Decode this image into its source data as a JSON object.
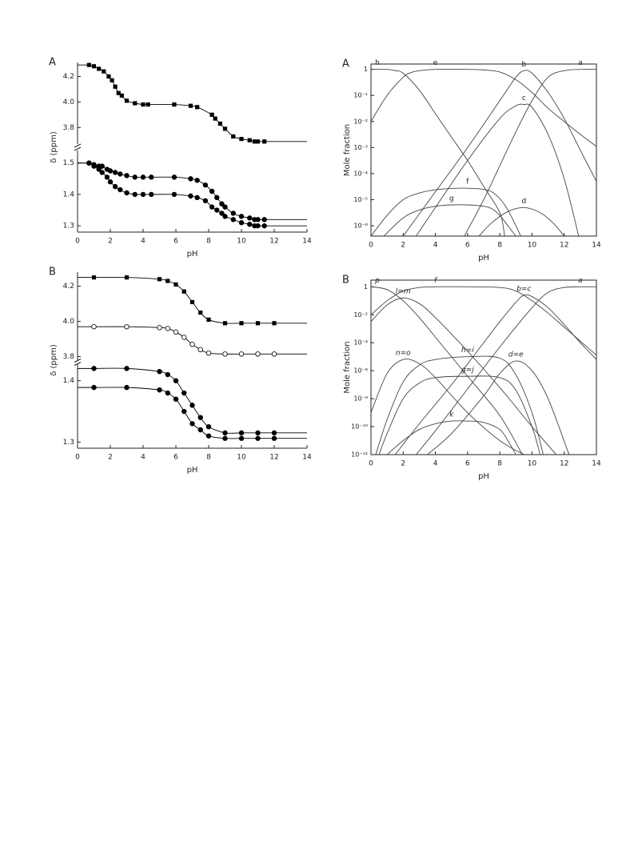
{
  "chart_data": [
    {
      "type": "scatter",
      "panel_label": "A",
      "xlabel": "pH",
      "ylabel": "δ (ppm)",
      "xlim": [
        0,
        14
      ],
      "xticks": [
        0,
        2,
        4,
        6,
        8,
        10,
        12,
        14
      ],
      "y_segments": [
        {
          "ylim": [
            3.67,
            4.31
          ],
          "yticks": [
            3.8,
            {
              "value": 4,
              "label": "4.0"
            },
            4.2
          ]
        },
        {
          "ylim": [
            1.28,
            1.54
          ],
          "yticks": [
            1.3,
            1.4,
            1.5
          ]
        }
      ],
      "series": [
        {
          "marker": "square",
          "color": "#000",
          "x": [
            0.7,
            1.0,
            1.3,
            1.6,
            1.9,
            2.1,
            2.3,
            2.5,
            2.7,
            3.0,
            3.5,
            4.0,
            4.3,
            5.9,
            6.9,
            7.3,
            8.2,
            8.4,
            8.7,
            9.0,
            9.5,
            10.0,
            10.5,
            10.8,
            11.0,
            11.4
          ],
          "values": [
            4.29,
            4.28,
            4.26,
            4.24,
            4.2,
            4.17,
            4.12,
            4.07,
            4.05,
            4.01,
            3.99,
            3.98,
            3.98,
            3.98,
            3.97,
            3.96,
            3.9,
            3.87,
            3.83,
            3.79,
            3.73,
            3.71,
            3.7,
            3.69,
            3.69,
            3.69
          ]
        },
        {
          "marker": "circle",
          "color": "#000",
          "x": [
            0.7,
            1.0,
            1.3,
            1.5,
            1.8,
            2.0,
            2.3,
            2.6,
            3.0,
            3.5,
            4.0,
            4.5,
            5.9,
            6.9,
            7.3,
            7.8,
            8.2,
            8.5,
            8.8,
            9.0,
            9.5,
            10.0,
            10.5,
            10.8,
            11.0,
            11.4
          ],
          "values": [
            1.5,
            1.495,
            1.49,
            1.49,
            1.48,
            1.475,
            1.47,
            1.465,
            1.46,
            1.455,
            1.455,
            1.455,
            1.455,
            1.45,
            1.445,
            1.43,
            1.41,
            1.39,
            1.37,
            1.36,
            1.34,
            1.33,
            1.325,
            1.32,
            1.32,
            1.32
          ]
        },
        {
          "marker": "circle",
          "color": "#000",
          "x": [
            0.7,
            1.0,
            1.3,
            1.5,
            1.8,
            2.0,
            2.3,
            2.6,
            3.0,
            3.5,
            4.0,
            4.5,
            5.9,
            6.9,
            7.3,
            7.8,
            8.2,
            8.5,
            8.8,
            9.0,
            9.5,
            10.0,
            10.5,
            10.8,
            11.0,
            11.4
          ],
          "values": [
            1.5,
            1.49,
            1.48,
            1.47,
            1.455,
            1.44,
            1.425,
            1.415,
            1.405,
            1.4,
            1.4,
            1.4,
            1.4,
            1.395,
            1.39,
            1.38,
            1.36,
            1.35,
            1.34,
            1.33,
            1.32,
            1.31,
            1.305,
            1.3,
            1.3,
            1.3
          ]
        }
      ]
    },
    {
      "type": "line",
      "log_y": true,
      "label_style": "normal",
      "panel_label": "A",
      "xlabel": "pH",
      "ylabel": "Mole fraction",
      "xlim": [
        0,
        14
      ],
      "xticks": [
        0,
        2,
        4,
        6,
        8,
        10,
        12,
        14
      ],
      "ylim": [
        4e-07,
        1.6
      ],
      "yticks": [
        1,
        {
          "value": 0.1,
          "label": "10⁻¹"
        },
        {
          "value": 0.01,
          "label": "10⁻²"
        },
        {
          "value": 0.001,
          "label": "10⁻³"
        },
        {
          "value": 0.0001,
          "label": "10⁻⁴"
        },
        {
          "value": 1e-05,
          "label": "10⁻⁵"
        },
        {
          "value": 1e-06,
          "label": "10⁻⁶"
        }
      ],
      "series": [
        {
          "name": "h",
          "color": "#444",
          "x": [
            0,
            1,
            1.5,
            2,
            3,
            4,
            5,
            6,
            7,
            8,
            8.3
          ],
          "values": [
            1,
            1,
            0.89,
            0.71,
            0.16,
            0.02,
            0.0025,
            0.00032,
            3.2e-05,
            3.2e-06,
            4e-07
          ]
        },
        {
          "name": "e",
          "color": "#444",
          "x": [
            0,
            1,
            2,
            2.5,
            3,
            4,
            6,
            7,
            8,
            9,
            10,
            11,
            12,
            13,
            14
          ],
          "values": [
            0.01,
            0.1,
            0.5,
            0.76,
            0.89,
            1,
            1,
            0.95,
            0.79,
            0.4,
            0.13,
            0.032,
            0.01,
            0.0032,
            0.0011
          ]
        },
        {
          "name": "b",
          "color": "#444",
          "x": [
            2,
            4,
            6,
            8,
            9,
            9.5,
            10,
            11,
            12,
            13,
            14
          ],
          "values": [
            4e-07,
            2e-05,
            0.001,
            0.063,
            0.5,
            0.89,
            0.71,
            0.13,
            0.013,
            0.00079,
            5e-05
          ]
        },
        {
          "name": "a",
          "color": "#444",
          "x": [
            5.8,
            7,
            8,
            9,
            10,
            11,
            12,
            13,
            14
          ],
          "values": [
            4e-07,
            1e-05,
            0.0002,
            0.004,
            0.063,
            0.5,
            0.89,
            1,
            1
          ]
        },
        {
          "name": "c",
          "color": "#444",
          "x": [
            2.8,
            4,
            6,
            8,
            9,
            9.5,
            10,
            11,
            12,
            12.9
          ],
          "values": [
            4e-07,
            5e-06,
            0.00032,
            0.013,
            0.04,
            0.045,
            0.035,
            0.0032,
            6.3e-05,
            4e-07
          ]
        },
        {
          "name": "f",
          "color": "#444",
          "x": [
            0,
            1,
            2,
            3,
            4,
            5,
            6,
            7,
            7.5,
            8,
            8.5,
            9,
            9.3
          ],
          "values": [
            4e-07,
            2.5e-06,
            1e-05,
            1.8e-05,
            2.4e-05,
            2.7e-05,
            2.75e-05,
            2.5e-05,
            2e-05,
            1.1e-05,
            4e-06,
            1e-06,
            4e-07
          ]
        },
        {
          "name": "g",
          "color": "#444",
          "x": [
            0.8,
            2,
            3,
            4,
            5,
            6,
            7,
            7.5,
            8,
            8.5,
            9
          ],
          "values": [
            4e-07,
            2e-06,
            4e-06,
            5.6e-06,
            6.3e-06,
            6.3e-06,
            5.6e-06,
            4.5e-06,
            2.5e-06,
            1e-06,
            4e-07
          ]
        },
        {
          "name": "d",
          "color": "#444",
          "x": [
            6.7,
            7.5,
            8.5,
            9.5,
            10.5,
            11.3,
            12
          ],
          "values": [
            4e-07,
            1.3e-06,
            3.5e-06,
            5e-06,
            3.2e-06,
            1.3e-06,
            4e-07
          ]
        }
      ]
    },
    {
      "type": "scatter",
      "panel_label": "B",
      "xlabel": "pH",
      "ylabel": "δ (ppm)",
      "xlim": [
        0,
        14
      ],
      "xticks": [
        0,
        2,
        4,
        6,
        8,
        10,
        12,
        14
      ],
      "y_segments": [
        {
          "ylim": [
            3.78,
            4.28
          ],
          "yticks": [
            3.8,
            {
              "value": 4,
              "label": "4.0"
            },
            4.2
          ]
        },
        {
          "ylim": [
            1.29,
            1.427
          ],
          "yticks": [
            1.3,
            1.4
          ]
        }
      ],
      "series": [
        {
          "marker": "square",
          "color": "#000",
          "x": [
            1,
            3,
            5,
            5.5,
            6,
            6.5,
            7,
            7.5,
            8,
            9,
            10,
            11,
            12
          ],
          "values": [
            4.25,
            4.25,
            4.24,
            4.23,
            4.21,
            4.17,
            4.11,
            4.05,
            4.01,
            3.99,
            3.99,
            3.99,
            3.99
          ]
        },
        {
          "marker": "open-circle",
          "color": "#000",
          "x": [
            1,
            3,
            5,
            5.5,
            6,
            6.5,
            7,
            7.5,
            8,
            9,
            10,
            11,
            12
          ],
          "values": [
            3.97,
            3.97,
            3.965,
            3.96,
            3.94,
            3.91,
            3.87,
            3.84,
            3.82,
            3.815,
            3.815,
            3.815,
            3.815
          ]
        },
        {
          "marker": "circle",
          "color": "#000",
          "x": [
            1,
            3,
            5,
            5.5,
            6,
            6.5,
            7,
            7.5,
            8,
            9,
            10,
            11,
            12
          ],
          "values": [
            1.42,
            1.42,
            1.415,
            1.41,
            1.4,
            1.38,
            1.36,
            1.34,
            1.325,
            1.315,
            1.315,
            1.315,
            1.315
          ]
        },
        {
          "marker": "circle",
          "color": "#000",
          "x": [
            1,
            3,
            5,
            5.5,
            6,
            6.5,
            7,
            7.5,
            8,
            9,
            10,
            11,
            12
          ],
          "values": [
            1.389,
            1.389,
            1.385,
            1.38,
            1.37,
            1.35,
            1.33,
            1.32,
            1.31,
            1.306,
            1.306,
            1.306,
            1.306
          ]
        }
      ]
    },
    {
      "type": "line",
      "log_y": true,
      "label_style": "italic",
      "panel_label": "B",
      "xlabel": "pH",
      "ylabel": "Mole fraction",
      "xlim": [
        0,
        14
      ],
      "xticks": [
        0,
        2,
        4,
        6,
        8,
        10,
        12,
        14
      ],
      "ylim": [
        1e-12,
        3
      ],
      "yticks": [
        1,
        {
          "value": 0.01,
          "label": "10⁻²"
        },
        {
          "value": 0.0001,
          "label": "10⁻⁴"
        },
        {
          "value": 1e-06,
          "label": "10⁻⁶"
        },
        {
          "value": 1e-08,
          "label": "10⁻⁸"
        },
        {
          "value": 1e-10,
          "label": "10⁻¹⁰"
        },
        {
          "value": 1e-12,
          "label": "10⁻¹²"
        }
      ],
      "series": [
        {
          "name": "p",
          "color": "#444",
          "x": [
            0,
            1,
            2,
            3,
            4,
            6,
            8,
            9.4
          ],
          "values": [
            1,
            0.63,
            0.1,
            0.0063,
            0.00025,
            4e-07,
            6.3e-10,
            1e-12
          ]
        },
        {
          "name": "f",
          "color": "#444",
          "x": [
            0,
            1,
            2,
            3,
            4,
            6,
            8,
            9,
            10,
            11,
            12,
            13,
            14
          ],
          "values": [
            0.01,
            0.1,
            0.5,
            0.89,
            1,
            1,
            0.89,
            0.5,
            0.1,
            0.013,
            0.0013,
            0.00013,
            1.3e-05
          ]
        },
        {
          "name": "a",
          "color": "#444",
          "x": [
            2.8,
            4,
            6,
            8,
            10,
            11,
            12,
            13,
            14
          ],
          "values": [
            1e-12,
            5e-11,
            5e-08,
            5e-05,
            0.032,
            0.4,
            0.89,
            1,
            1
          ]
        },
        {
          "name": "l=m",
          "color": "#444",
          "x": [
            0,
            1,
            2,
            3,
            4,
            6,
            8,
            10,
            11.5
          ],
          "values": [
            0.0032,
            0.05,
            0.16,
            0.063,
            0.0063,
            2.5e-05,
            6.3e-08,
            1e-10,
            1e-12
          ]
        },
        {
          "name": "b=c",
          "color": "#444",
          "x": [
            1.5,
            3,
            5,
            7,
            8,
            9,
            9.5,
            10,
            11,
            12,
            13,
            14
          ],
          "values": [
            1e-12,
            1.6e-10,
            1e-07,
            0.0001,
            0.0032,
            0.079,
            0.25,
            0.2,
            0.032,
            0.002,
            0.0001,
            6.3e-06
          ]
        },
        {
          "name": "n=o",
          "color": "#444",
          "x": [
            0,
            1,
            2,
            3,
            4,
            6,
            8,
            9.5
          ],
          "values": [
            1e-09,
            6.3e-07,
            6.3e-06,
            3.2e-06,
            3.2e-07,
            1e-09,
            1e-11,
            1e-12
          ]
        },
        {
          "name": "h=i",
          "color": "#444",
          "x": [
            0.3,
            1,
            2,
            3,
            4,
            6,
            8,
            9,
            10,
            10.7
          ],
          "values": [
            1e-12,
            3.2e-10,
            1.6e-07,
            2.5e-06,
            6.3e-06,
            1e-05,
            7.9e-06,
            5e-07,
            1e-09,
            1e-12
          ]
        },
        {
          "name": "g=j",
          "color": "#444",
          "x": [
            0.5,
            1,
            2,
            3,
            4,
            6,
            8,
            9,
            10,
            10.5
          ],
          "values": [
            1e-12,
            3.2e-11,
            1e-08,
            1.3e-07,
            3.2e-07,
            4e-07,
            3.2e-07,
            4e-08,
            1e-10,
            1e-12
          ]
        },
        {
          "name": "d=e",
          "color": "#444",
          "x": [
            3.5,
            5,
            7,
            8,
            9,
            10,
            11,
            12.3
          ],
          "values": [
            1e-12,
            3.2e-11,
            1.6e-08,
            6.3e-07,
            5e-06,
            1e-06,
            1e-08,
            1e-12
          ]
        },
        {
          "name": "k",
          "color": "#444",
          "x": [
            1,
            2,
            3,
            4,
            5,
            6,
            7,
            8,
            8.5,
            9
          ],
          "values": [
            1e-12,
            1e-11,
            6.3e-11,
            1.6e-10,
            2.5e-10,
            2.5e-10,
            2e-10,
            6.3e-11,
            1e-11,
            1e-12
          ]
        }
      ]
    }
  ]
}
